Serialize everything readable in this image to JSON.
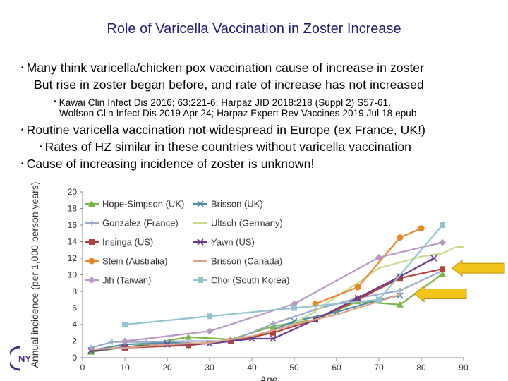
{
  "slide": {
    "title": "Role of Varicella Vaccination in Zoster Increase",
    "bullets": {
      "b1_line1": "Many think varicella/chicken pox vaccination cause of increase in zoster",
      "b1_line2": "But rise in zoster began before, and rate of increase has not increased",
      "ref_line1": "Kawai Clin Infect Dis 2016; 63:221-6; Harpaz JID 2018:218 (Suppl 2) S57-61.",
      "ref_line2": "Wolfson Clin Infect Dis 2019 Apr 24; Harpaz Expert Rev Vaccines 2019 Jul 18 epub",
      "b2": "Routine varicella vaccination not widespread in Europe (ex France, UK!)",
      "b3": "Rates of HZ similar in these countries without varicella vaccination",
      "b4": "Cause of increasing incidence of zoster is unknown!"
    },
    "bullet_glyph": "•",
    "logo_text": "NY"
  },
  "chart_data": {
    "type": "line",
    "xlabel": "Age",
    "ylabel": "Annual incidence (per 1,000 person years)",
    "xlim": [
      0,
      90
    ],
    "ylim": [
      0,
      20
    ],
    "xticks": [
      0,
      10,
      20,
      30,
      40,
      50,
      60,
      70,
      80,
      90
    ],
    "yticks": [
      0,
      2,
      4,
      6,
      8,
      10,
      12,
      14,
      16,
      18,
      20
    ],
    "grid": false,
    "legend_position": "top-left, two columns",
    "series": [
      {
        "name": "Hope-Simpson (UK)",
        "color": "#7ab648",
        "marker": "triangle",
        "x": [
          2,
          15,
          25,
          35,
          45,
          55,
          65,
          75,
          85
        ],
        "y": [
          0.7,
          1.6,
          2.5,
          2.2,
          3.8,
          4.6,
          6.8,
          6.4,
          10.1
        ]
      },
      {
        "name": "Brisson (UK)",
        "color": "#4f8fa6",
        "marker": "x",
        "x": [
          2,
          10,
          20,
          30,
          40,
          50,
          60,
          70,
          75
        ],
        "y": [
          0.9,
          1.6,
          1.8,
          1.7,
          2.3,
          4.4,
          5.5,
          7.0,
          7.5
        ]
      },
      {
        "name": "Gonzalez (France)",
        "color": "#9aaac8",
        "marker": "plus",
        "x": [
          2,
          7,
          15,
          25,
          35,
          45,
          55,
          65,
          75,
          85
        ],
        "y": [
          1.2,
          1.9,
          1.9,
          2.0,
          2.0,
          4.1,
          5.8,
          7.2,
          8.1,
          10.5
        ]
      },
      {
        "name": "Ultsch (Germany)",
        "color": "#c6dc8a",
        "marker": "line",
        "x": [
          50,
          55,
          60,
          65,
          70,
          75,
          80,
          85,
          88,
          90
        ],
        "y": [
          4.2,
          5.6,
          7.4,
          9.0,
          10.8,
          11.5,
          12.2,
          12.6,
          13.3,
          13.4
        ]
      },
      {
        "name": "Insinga (US)",
        "color": "#b5423a",
        "marker": "square",
        "x": [
          10,
          25,
          35,
          45,
          55,
          65,
          75,
          85
        ],
        "y": [
          1.2,
          1.5,
          2.0,
          3.0,
          4.6,
          7.0,
          9.6,
          10.7
        ]
      },
      {
        "name": "Yawn (US)",
        "color": "#6a3d8c",
        "marker": "x",
        "x": [
          2,
          10,
          20,
          30,
          40,
          45,
          55,
          65,
          75,
          83
        ],
        "y": [
          0.8,
          1.3,
          1.6,
          1.7,
          2.3,
          2.3,
          4.6,
          7.2,
          9.8,
          12.0
        ]
      },
      {
        "name": "Stein (Australia)",
        "color": "#e8872a",
        "marker": "circle",
        "x": [
          55,
          65,
          75,
          80
        ],
        "y": [
          6.5,
          8.5,
          14.5,
          15.6
        ]
      },
      {
        "name": "Brisson (Canada)",
        "color": "#d9a58c",
        "marker": "line",
        "x": [
          2,
          10,
          20,
          30,
          40,
          50,
          60,
          70,
          75
        ],
        "y": [
          1.0,
          1.2,
          1.6,
          1.8,
          2.6,
          4.0,
          5.2,
          6.8,
          7.6
        ]
      },
      {
        "name": "Jih (Taiwan)",
        "color": "#b99ac4",
        "marker": "diamond",
        "x": [
          10,
          30,
          50,
          70,
          85
        ],
        "y": [
          2.0,
          3.2,
          6.5,
          12.1,
          13.9
        ]
      },
      {
        "name": "Choi (South Korea)",
        "color": "#93c4cf",
        "marker": "square",
        "x": [
          10,
          30,
          50,
          70,
          85
        ],
        "y": [
          4.0,
          5.0,
          6.0,
          7.0,
          16.0
        ]
      }
    ],
    "annotations": [
      {
        "type": "arrow",
        "direction": "left",
        "color": "#f2c318",
        "target": [
          86,
          10.8
        ]
      },
      {
        "type": "arrow",
        "direction": "left",
        "color": "#f2c318",
        "target": [
          77,
          7.7
        ]
      }
    ]
  }
}
